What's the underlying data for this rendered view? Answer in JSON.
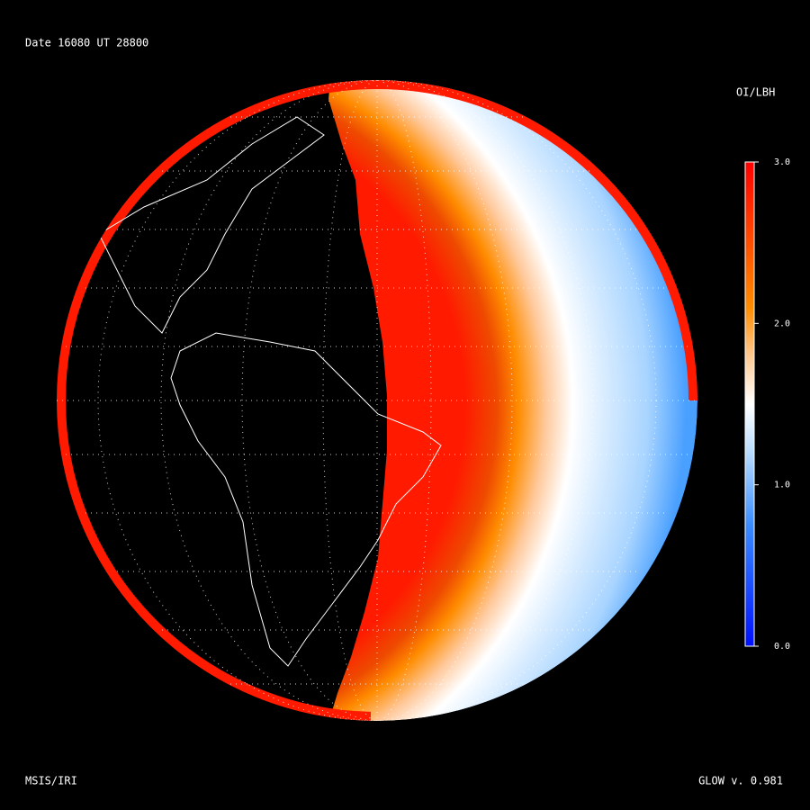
{
  "header": {
    "date": "Date 16080  UT 28800"
  },
  "colorbar": {
    "title": "OI/LBH",
    "range": [
      0,
      3
    ],
    "ticks": [
      {
        "value": 0,
        "label": "0.0"
      },
      {
        "value": 1,
        "label": "1.0"
      },
      {
        "value": 2,
        "label": "2.0"
      },
      {
        "value": 3,
        "label": "3.0"
      }
    ]
  },
  "footer": {
    "left": "MSIS/IRI",
    "right": "GLOW v. 0.981"
  }
}
